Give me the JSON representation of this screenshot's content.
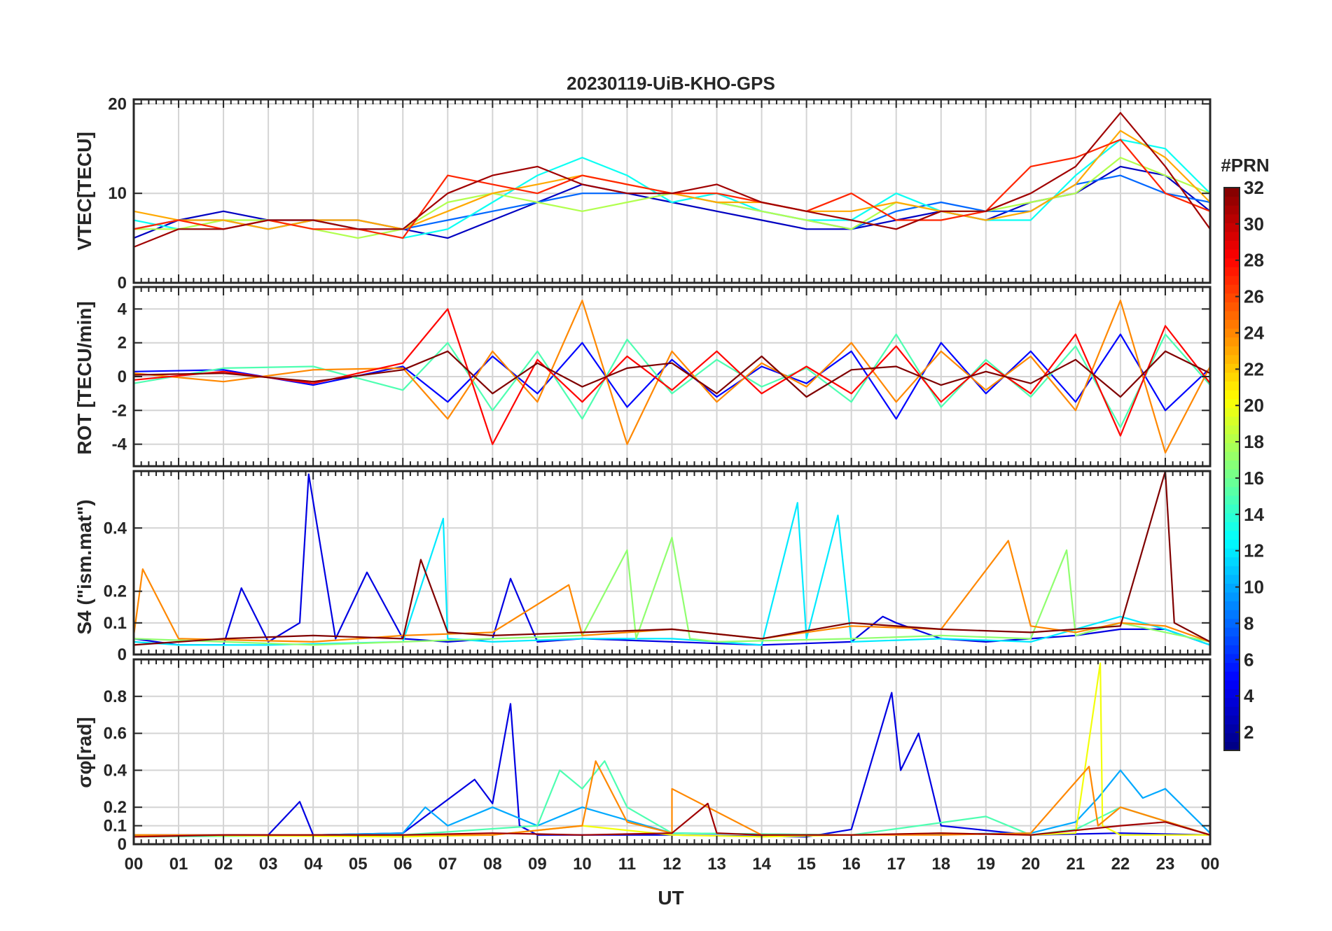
{
  "figure": {
    "title": "20230119-UiB-KHO-GPS",
    "xlabel": "UT",
    "colorbar_label": "#PRN"
  },
  "chart_data": [
    {
      "type": "line",
      "panel": "VTEC",
      "ylabel": "VTEC[TECU]",
      "ylim": [
        0,
        20.5
      ],
      "yticks": [
        0,
        10,
        20
      ],
      "xlim": [
        0,
        24
      ],
      "grid": true,
      "series": [
        {
          "prn": 3,
          "x": [
            0,
            1,
            2,
            3,
            4,
            5,
            6,
            7,
            8,
            9,
            10,
            11,
            12,
            13,
            14,
            15,
            16,
            17,
            18,
            19,
            20,
            21,
            22,
            23,
            24
          ],
          "y": [
            5,
            7,
            8,
            7,
            7,
            7,
            6,
            5,
            7,
            9,
            11,
            10,
            9,
            8,
            7,
            6,
            6,
            7,
            8,
            7,
            9,
            10,
            13,
            12,
            8
          ]
        },
        {
          "prn": 8,
          "x": [
            0,
            1,
            2,
            3,
            4,
            5,
            6,
            7,
            8,
            9,
            10,
            11,
            12,
            13,
            14,
            15,
            16,
            17,
            18,
            19,
            20,
            21,
            22,
            23,
            24
          ],
          "y": [
            6,
            7,
            7,
            6,
            7,
            6,
            6,
            7,
            8,
            9,
            10,
            10,
            10,
            9,
            8,
            7,
            6,
            8,
            9,
            8,
            8,
            11,
            12,
            10,
            9
          ]
        },
        {
          "prn": 13,
          "x": [
            0,
            1,
            2,
            3,
            4,
            5,
            6,
            7,
            8,
            9,
            10,
            11,
            12,
            13,
            14,
            15,
            16,
            17,
            18,
            19,
            20,
            21,
            22,
            23,
            24
          ],
          "y": [
            7,
            6,
            6,
            7,
            7,
            6,
            5,
            6,
            9,
            12,
            14,
            12,
            9,
            10,
            8,
            7,
            7,
            10,
            8,
            7,
            7,
            12,
            16,
            15,
            10
          ]
        },
        {
          "prn": 18,
          "x": [
            0,
            1,
            2,
            3,
            4,
            5,
            6,
            7,
            8,
            9,
            10,
            11,
            12,
            13,
            14,
            15,
            16,
            17,
            18,
            19,
            20,
            21,
            22,
            23,
            24
          ],
          "y": [
            6,
            6,
            7,
            7,
            6,
            5,
            6,
            9,
            10,
            9,
            8,
            9,
            10,
            9,
            8,
            7,
            6,
            9,
            8,
            8,
            9,
            10,
            14,
            12,
            10
          ]
        },
        {
          "prn": 23,
          "x": [
            0,
            1,
            2,
            3,
            4,
            5,
            6,
            7,
            8,
            9,
            10,
            11,
            12,
            13,
            14,
            15,
            16,
            17,
            18,
            19,
            20,
            21,
            22,
            23,
            24
          ],
          "y": [
            8,
            7,
            7,
            6,
            7,
            7,
            6,
            8,
            10,
            11,
            12,
            11,
            10,
            9,
            9,
            8,
            8,
            9,
            8,
            7,
            8,
            11,
            17,
            14,
            9
          ]
        },
        {
          "prn": 27,
          "x": [
            0,
            1,
            2,
            3,
            4,
            5,
            6,
            7,
            8,
            9,
            10,
            11,
            12,
            13,
            14,
            15,
            16,
            17,
            18,
            19,
            20,
            21,
            22,
            23,
            24
          ],
          "y": [
            6,
            7,
            6,
            7,
            6,
            6,
            5,
            12,
            11,
            10,
            12,
            11,
            10,
            10,
            9,
            8,
            10,
            7,
            7,
            8,
            13,
            14,
            16,
            10,
            8
          ]
        },
        {
          "prn": 31,
          "x": [
            0,
            1,
            2,
            3,
            4,
            5,
            6,
            7,
            8,
            9,
            10,
            11,
            12,
            13,
            14,
            15,
            16,
            17,
            18,
            19,
            20,
            21,
            22,
            23,
            24
          ],
          "y": [
            4,
            6,
            6,
            7,
            7,
            6,
            6,
            10,
            12,
            13,
            11,
            10,
            10,
            11,
            9,
            8,
            7,
            6,
            8,
            8,
            10,
            13,
            19,
            13,
            6
          ]
        }
      ]
    },
    {
      "type": "line",
      "panel": "ROT",
      "ylabel": "ROT [TECU/min]",
      "ylim": [
        -5.3,
        5.3
      ],
      "yticks": [
        -4,
        -2,
        0,
        2,
        4
      ],
      "xlim": [
        0,
        24
      ],
      "grid": true,
      "series": [
        {
          "prn": 5,
          "x": [
            0,
            2,
            4,
            6,
            7,
            8,
            9,
            10,
            11,
            12,
            13,
            14,
            15,
            16,
            17,
            18,
            19,
            20,
            21,
            22,
            23,
            24
          ],
          "y": [
            0.3,
            0.4,
            -0.5,
            0.6,
            -1.5,
            1.2,
            -1.0,
            2.0,
            -1.8,
            1.0,
            -1.2,
            0.6,
            -0.4,
            1.5,
            -2.5,
            2.0,
            -1.0,
            1.5,
            -1.5,
            2.5,
            -2.0,
            0.5
          ]
        },
        {
          "prn": 15,
          "x": [
            0,
            2,
            4,
            6,
            7,
            8,
            9,
            10,
            11,
            12,
            13,
            14,
            15,
            16,
            17,
            18,
            19,
            20,
            21,
            22,
            23,
            24
          ],
          "y": [
            -0.4,
            0.5,
            0.6,
            -0.8,
            2.0,
            -2.0,
            1.5,
            -2.5,
            2.2,
            -1.0,
            1.0,
            -0.6,
            0.5,
            -1.5,
            2.5,
            -1.8,
            1.0,
            -1.2,
            1.8,
            -3.0,
            2.5,
            -0.5
          ]
        },
        {
          "prn": 24,
          "x": [
            0,
            2,
            4,
            6,
            7,
            8,
            9,
            10,
            11,
            12,
            13,
            14,
            15,
            16,
            17,
            18,
            19,
            20,
            21,
            22,
            23,
            24
          ],
          "y": [
            0.2,
            -0.3,
            0.4,
            0.5,
            -2.5,
            1.5,
            -1.5,
            4.5,
            -4.0,
            1.5,
            -1.5,
            0.8,
            -0.6,
            2.0,
            -1.5,
            1.5,
            -0.8,
            1.2,
            -2.0,
            4.5,
            -4.5,
            0.6
          ]
        },
        {
          "prn": 28,
          "x": [
            0,
            2,
            4,
            6,
            7,
            8,
            9,
            10,
            11,
            12,
            13,
            14,
            15,
            16,
            17,
            18,
            19,
            20,
            21,
            22,
            23,
            24
          ],
          "y": [
            -0.2,
            0.3,
            -0.4,
            0.8,
            4.0,
            -4.0,
            1.0,
            -1.5,
            1.2,
            -0.8,
            1.5,
            -1.0,
            0.6,
            -1.0,
            1.8,
            -1.5,
            0.8,
            -1.0,
            2.5,
            -3.5,
            3.0,
            -0.4
          ]
        },
        {
          "prn": 32,
          "x": [
            0,
            2,
            4,
            6,
            7,
            8,
            9,
            10,
            11,
            12,
            13,
            14,
            15,
            16,
            17,
            18,
            19,
            20,
            21,
            22,
            23,
            24
          ],
          "y": [
            0.1,
            0.2,
            -0.3,
            0.4,
            1.5,
            -1.0,
            0.8,
            -0.6,
            0.5,
            0.8,
            -1.0,
            1.2,
            -1.2,
            0.4,
            0.6,
            -0.5,
            0.3,
            -0.4,
            1.0,
            -1.2,
            1.5,
            0.2
          ]
        }
      ]
    },
    {
      "type": "line",
      "panel": "S4",
      "ylabel": "S4 (\"ism.mat\")",
      "ylim": [
        0,
        0.58
      ],
      "yticks": [
        0,
        0.1,
        0.2,
        0.4
      ],
      "xlim": [
        0,
        24
      ],
      "grid": true,
      "series": [
        {
          "prn": 4,
          "x": [
            0,
            1,
            2,
            2.4,
            3,
            3.7,
            3.9,
            4.5,
            5.2,
            6,
            7,
            8,
            8.4,
            9,
            10,
            12,
            14,
            16,
            16.7,
            17,
            18,
            19,
            20,
            21,
            22,
            23,
            24
          ],
          "y": [
            0.05,
            0.03,
            0.03,
            0.21,
            0.04,
            0.1,
            0.57,
            0.05,
            0.26,
            0.05,
            0.04,
            0.05,
            0.24,
            0.04,
            0.05,
            0.04,
            0.03,
            0.04,
            0.12,
            0.1,
            0.05,
            0.04,
            0.05,
            0.06,
            0.08,
            0.08,
            0.03
          ]
        },
        {
          "prn": 12,
          "x": [
            0,
            1,
            3,
            6,
            6.9,
            7,
            8,
            10,
            12,
            14,
            14.8,
            15,
            15.7,
            16,
            18,
            20,
            22,
            23,
            24
          ],
          "y": [
            0.04,
            0.03,
            0.03,
            0.04,
            0.43,
            0.05,
            0.04,
            0.05,
            0.05,
            0.03,
            0.48,
            0.05,
            0.44,
            0.04,
            0.05,
            0.04,
            0.12,
            0.08,
            0.03
          ]
        },
        {
          "prn": 17,
          "x": [
            0,
            2,
            4,
            6,
            8,
            10,
            11,
            11.2,
            12,
            12.4,
            13,
            16,
            18,
            20,
            20.8,
            21,
            22,
            24
          ],
          "y": [
            0.05,
            0.04,
            0.03,
            0.04,
            0.05,
            0.06,
            0.33,
            0.05,
            0.37,
            0.05,
            0.04,
            0.05,
            0.06,
            0.05,
            0.33,
            0.06,
            0.1,
            0.04
          ]
        },
        {
          "prn": 24,
          "x": [
            0,
            0.2,
            1,
            4,
            6,
            8,
            9.7,
            10,
            12,
            14,
            16,
            18,
            19.5,
            20,
            21,
            22,
            23,
            24
          ],
          "y": [
            0.06,
            0.27,
            0.05,
            0.04,
            0.06,
            0.07,
            0.22,
            0.06,
            0.08,
            0.05,
            0.09,
            0.08,
            0.36,
            0.09,
            0.07,
            0.1,
            0.09,
            0.04
          ]
        },
        {
          "prn": 32,
          "x": [
            0,
            2,
            4,
            6,
            6.4,
            7,
            8,
            10,
            12,
            14,
            16,
            18,
            20,
            22,
            23.0,
            23.2,
            24
          ],
          "y": [
            0.03,
            0.05,
            0.06,
            0.05,
            0.3,
            0.07,
            0.06,
            0.07,
            0.08,
            0.05,
            0.1,
            0.08,
            0.07,
            0.09,
            0.58,
            0.1,
            0.04
          ]
        }
      ]
    },
    {
      "type": "line",
      "panel": "sigma-phi",
      "ylabel": "σφ[rad]",
      "ylim": [
        0,
        1.0
      ],
      "yticks": [
        0,
        0.1,
        0.2,
        0.4,
        0.6,
        0.8
      ],
      "xlim": [
        0,
        24
      ],
      "grid": true,
      "series": [
        {
          "prn": 4,
          "x": [
            0,
            3,
            3.7,
            4,
            6,
            7.6,
            8,
            8.4,
            8.6,
            9,
            12,
            15,
            16,
            16.9,
            17.1,
            17.5,
            18,
            20,
            22,
            24
          ],
          "y": [
            0.05,
            0.05,
            0.23,
            0.05,
            0.06,
            0.35,
            0.22,
            0.76,
            0.1,
            0.05,
            0.05,
            0.04,
            0.08,
            0.82,
            0.4,
            0.6,
            0.1,
            0.05,
            0.06,
            0.05
          ]
        },
        {
          "prn": 10,
          "x": [
            0,
            4,
            6,
            6.5,
            7,
            8,
            9,
            10,
            12,
            16,
            20,
            21,
            21.5,
            22,
            22.5,
            23,
            24
          ],
          "y": [
            0.04,
            0.05,
            0.06,
            0.2,
            0.1,
            0.2,
            0.1,
            0.2,
            0.06,
            0.05,
            0.06,
            0.12,
            0.25,
            0.4,
            0.25,
            0.3,
            0.06
          ]
        },
        {
          "prn": 15,
          "x": [
            0,
            6,
            9,
            9.5,
            10,
            10.5,
            11,
            12,
            16,
            19,
            20,
            21,
            22,
            24
          ],
          "y": [
            0.04,
            0.05,
            0.1,
            0.4,
            0.3,
            0.45,
            0.2,
            0.06,
            0.05,
            0.15,
            0.05,
            0.08,
            0.2,
            0.05
          ]
        },
        {
          "prn": 20,
          "x": [
            0,
            6,
            8,
            10,
            12,
            14,
            16,
            18,
            20,
            21,
            21.55,
            21.6,
            22,
            24
          ],
          "y": [
            0.05,
            0.04,
            0.05,
            0.1,
            0.05,
            0.04,
            0.05,
            0.06,
            0.05,
            0.06,
            0.98,
            0.1,
            0.05,
            0.05
          ]
        },
        {
          "prn": 24,
          "x": [
            0,
            4,
            8,
            10,
            10.3,
            11,
            12,
            12,
            14,
            16,
            18,
            20,
            21.3,
            21.5,
            22,
            24
          ],
          "y": [
            0.05,
            0.05,
            0.05,
            0.1,
            0.45,
            0.12,
            0.06,
            0.3,
            0.05,
            0.05,
            0.05,
            0.06,
            0.42,
            0.1,
            0.2,
            0.05
          ]
        },
        {
          "prn": 31,
          "x": [
            0,
            2,
            4,
            6,
            8,
            10,
            12,
            12.8,
            13,
            14,
            16,
            18,
            20,
            22,
            23,
            24
          ],
          "y": [
            0.04,
            0.05,
            0.05,
            0.05,
            0.06,
            0.05,
            0.06,
            0.22,
            0.06,
            0.05,
            0.05,
            0.06,
            0.05,
            0.1,
            0.12,
            0.05
          ]
        }
      ]
    }
  ],
  "x_axis": {
    "tick_labels": [
      "00",
      "01",
      "02",
      "03",
      "04",
      "05",
      "06",
      "07",
      "08",
      "09",
      "10",
      "11",
      "12",
      "13",
      "14",
      "15",
      "16",
      "17",
      "18",
      "19",
      "20",
      "21",
      "22",
      "23",
      "00"
    ]
  },
  "colorbar": {
    "range": [
      1,
      32
    ],
    "colormap": "jet",
    "tick_values": [
      2,
      4,
      6,
      8,
      10,
      12,
      14,
      16,
      18,
      20,
      22,
      24,
      26,
      28,
      30,
      32
    ]
  }
}
